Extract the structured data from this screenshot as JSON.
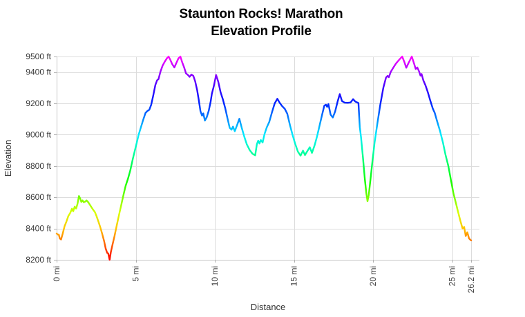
{
  "chart_data": {
    "type": "line",
    "title": "Staunton Rocks! Marathon",
    "subtitle": "Elevation Profile",
    "xlabel": "Distance",
    "ylabel": "Elevation",
    "xlim": [
      0,
      26.2
    ],
    "ylim": [
      8200,
      9500
    ],
    "grid": true,
    "x_ticks": {
      "values": [
        0,
        5,
        10,
        15,
        20,
        25,
        26.2
      ],
      "labels": [
        "0 mi",
        "5 mi",
        "10 mi",
        "15 mi",
        "20 mi",
        "25 mi",
        "26.2 mi"
      ]
    },
    "y_ticks": {
      "values": [
        8200,
        8400,
        8600,
        8800,
        9000,
        9200,
        9400,
        9500
      ],
      "labels": [
        "8200 ft",
        "8400 ft",
        "8600 ft",
        "8800 ft",
        "9000 ft",
        "9200 ft",
        "9400 ft",
        "9500 ft"
      ]
    },
    "line_style": {
      "width": 2.4,
      "colored_by": "elevation"
    },
    "color_scale": [
      {
        "ft": 8200,
        "color": "#ff0000"
      },
      {
        "ft": 8300,
        "color": "#ff6200"
      },
      {
        "ft": 8400,
        "color": "#ffc400"
      },
      {
        "ft": 8500,
        "color": "#d9ff00"
      },
      {
        "ft": 8600,
        "color": "#75ff00"
      },
      {
        "ft": 8700,
        "color": "#14ff00"
      },
      {
        "ft": 8800,
        "color": "#00ff4f"
      },
      {
        "ft": 8900,
        "color": "#00ffb0"
      },
      {
        "ft": 9000,
        "color": "#00ebff"
      },
      {
        "ft": 9100,
        "color": "#0087ff"
      },
      {
        "ft": 9200,
        "color": "#0023ff"
      },
      {
        "ft": 9300,
        "color": "#3c00ff"
      },
      {
        "ft": 9400,
        "color": "#9e00ff"
      },
      {
        "ft": 9500,
        "color": "#ff00ff"
      }
    ],
    "points": [
      [
        0.0,
        8368
      ],
      [
        0.07,
        8362
      ],
      [
        0.14,
        8360
      ],
      [
        0.2,
        8336
      ],
      [
        0.28,
        8330
      ],
      [
        0.38,
        8366
      ],
      [
        0.5,
        8415
      ],
      [
        0.62,
        8445
      ],
      [
        0.74,
        8480
      ],
      [
        0.86,
        8500
      ],
      [
        0.97,
        8527
      ],
      [
        1.05,
        8510
      ],
      [
        1.14,
        8540
      ],
      [
        1.23,
        8528
      ],
      [
        1.32,
        8558
      ],
      [
        1.41,
        8608
      ],
      [
        1.49,
        8592
      ],
      [
        1.56,
        8570
      ],
      [
        1.64,
        8580
      ],
      [
        1.71,
        8568
      ],
      [
        1.8,
        8572
      ],
      [
        1.89,
        8580
      ],
      [
        2.0,
        8568
      ],
      [
        2.1,
        8552
      ],
      [
        2.21,
        8535
      ],
      [
        2.31,
        8520
      ],
      [
        2.42,
        8505
      ],
      [
        2.52,
        8480
      ],
      [
        2.64,
        8444
      ],
      [
        2.76,
        8408
      ],
      [
        2.88,
        8365
      ],
      [
        3.0,
        8320
      ],
      [
        3.1,
        8272
      ],
      [
        3.19,
        8245
      ],
      [
        3.26,
        8240
      ],
      [
        3.35,
        8200
      ],
      [
        3.43,
        8250
      ],
      [
        3.53,
        8295
      ],
      [
        3.66,
        8352
      ],
      [
        3.8,
        8420
      ],
      [
        3.94,
        8485
      ],
      [
        4.08,
        8548
      ],
      [
        4.22,
        8612
      ],
      [
        4.36,
        8672
      ],
      [
        4.5,
        8716
      ],
      [
        4.65,
        8770
      ],
      [
        4.82,
        8848
      ],
      [
        5.0,
        8922
      ],
      [
        5.18,
        8998
      ],
      [
        5.34,
        9052
      ],
      [
        5.48,
        9098
      ],
      [
        5.62,
        9140
      ],
      [
        5.74,
        9152
      ],
      [
        5.86,
        9160
      ],
      [
        5.98,
        9192
      ],
      [
        6.1,
        9248
      ],
      [
        6.24,
        9318
      ],
      [
        6.35,
        9348
      ],
      [
        6.44,
        9356
      ],
      [
        6.56,
        9402
      ],
      [
        6.7,
        9442
      ],
      [
        6.84,
        9468
      ],
      [
        6.98,
        9490
      ],
      [
        7.08,
        9500
      ],
      [
        7.18,
        9480
      ],
      [
        7.3,
        9452
      ],
      [
        7.44,
        9430
      ],
      [
        7.57,
        9460
      ],
      [
        7.7,
        9488
      ],
      [
        7.82,
        9500
      ],
      [
        7.93,
        9465
      ],
      [
        8.05,
        9432
      ],
      [
        8.18,
        9392
      ],
      [
        8.3,
        9382
      ],
      [
        8.4,
        9370
      ],
      [
        8.52,
        9385
      ],
      [
        8.64,
        9376
      ],
      [
        8.76,
        9340
      ],
      [
        8.88,
        9285
      ],
      [
        8.99,
        9218
      ],
      [
        9.09,
        9150
      ],
      [
        9.19,
        9122
      ],
      [
        9.27,
        9136
      ],
      [
        9.37,
        9090
      ],
      [
        9.49,
        9112
      ],
      [
        9.61,
        9152
      ],
      [
        9.73,
        9208
      ],
      [
        9.81,
        9262
      ],
      [
        9.94,
        9312
      ],
      [
        10.08,
        9382
      ],
      [
        10.22,
        9338
      ],
      [
        10.36,
        9272
      ],
      [
        10.5,
        9228
      ],
      [
        10.65,
        9172
      ],
      [
        10.8,
        9105
      ],
      [
        10.94,
        9044
      ],
      [
        11.05,
        9032
      ],
      [
        11.15,
        9052
      ],
      [
        11.26,
        9022
      ],
      [
        11.4,
        9060
      ],
      [
        11.55,
        9102
      ],
      [
        11.7,
        9045
      ],
      [
        11.86,
        8988
      ],
      [
        12.02,
        8938
      ],
      [
        12.2,
        8902
      ],
      [
        12.38,
        8878
      ],
      [
        12.55,
        8868
      ],
      [
        12.66,
        8940
      ],
      [
        12.74,
        8962
      ],
      [
        12.82,
        8944
      ],
      [
        12.91,
        8966
      ],
      [
        13.02,
        8950
      ],
      [
        13.14,
        9004
      ],
      [
        13.28,
        9046
      ],
      [
        13.44,
        9082
      ],
      [
        13.6,
        9140
      ],
      [
        13.78,
        9200
      ],
      [
        13.95,
        9230
      ],
      [
        14.1,
        9204
      ],
      [
        14.26,
        9182
      ],
      [
        14.42,
        9166
      ],
      [
        14.58,
        9134
      ],
      [
        14.75,
        9060
      ],
      [
        14.92,
        8996
      ],
      [
        15.08,
        8942
      ],
      [
        15.25,
        8892
      ],
      [
        15.42,
        8866
      ],
      [
        15.57,
        8898
      ],
      [
        15.7,
        8870
      ],
      [
        15.85,
        8896
      ],
      [
        16.0,
        8920
      ],
      [
        16.14,
        8884
      ],
      [
        16.3,
        8930
      ],
      [
        16.46,
        8988
      ],
      [
        16.62,
        9058
      ],
      [
        16.78,
        9128
      ],
      [
        16.92,
        9186
      ],
      [
        17.02,
        9192
      ],
      [
        17.1,
        9178
      ],
      [
        17.18,
        9196
      ],
      [
        17.32,
        9128
      ],
      [
        17.46,
        9110
      ],
      [
        17.6,
        9148
      ],
      [
        17.76,
        9212
      ],
      [
        17.9,
        9260
      ],
      [
        18.04,
        9215
      ],
      [
        18.2,
        9205
      ],
      [
        18.4,
        9204
      ],
      [
        18.58,
        9206
      ],
      [
        18.74,
        9227
      ],
      [
        18.88,
        9212
      ],
      [
        19.0,
        9206
      ],
      [
        19.08,
        9202
      ],
      [
        19.16,
        9050
      ],
      [
        19.24,
        8985
      ],
      [
        19.36,
        8855
      ],
      [
        19.48,
        8718
      ],
      [
        19.58,
        8622
      ],
      [
        19.65,
        8574
      ],
      [
        19.73,
        8614
      ],
      [
        19.83,
        8705
      ],
      [
        19.96,
        8828
      ],
      [
        20.1,
        8952
      ],
      [
        20.28,
        9075
      ],
      [
        20.46,
        9192
      ],
      [
        20.65,
        9300
      ],
      [
        20.82,
        9365
      ],
      [
        20.92,
        9376
      ],
      [
        21.0,
        9368
      ],
      [
        21.12,
        9402
      ],
      [
        21.28,
        9428
      ],
      [
        21.45,
        9455
      ],
      [
        21.64,
        9478
      ],
      [
        21.84,
        9500
      ],
      [
        21.97,
        9468
      ],
      [
        22.1,
        9428
      ],
      [
        22.26,
        9462
      ],
      [
        22.45,
        9500
      ],
      [
        22.6,
        9452
      ],
      [
        22.7,
        9420
      ],
      [
        22.8,
        9430
      ],
      [
        22.92,
        9402
      ],
      [
        23.0,
        9378
      ],
      [
        23.07,
        9388
      ],
      [
        23.18,
        9348
      ],
      [
        23.32,
        9315
      ],
      [
        23.46,
        9272
      ],
      [
        23.62,
        9218
      ],
      [
        23.78,
        9166
      ],
      [
        23.9,
        9140
      ],
      [
        24.04,
        9090
      ],
      [
        24.22,
        9028
      ],
      [
        24.42,
        8950
      ],
      [
        24.58,
        8872
      ],
      [
        24.76,
        8800
      ],
      [
        24.92,
        8712
      ],
      [
        25.08,
        8625
      ],
      [
        25.23,
        8566
      ],
      [
        25.38,
        8505
      ],
      [
        25.52,
        8450
      ],
      [
        25.66,
        8400
      ],
      [
        25.76,
        8410
      ],
      [
        25.86,
        8352
      ],
      [
        25.96,
        8376
      ],
      [
        26.07,
        8336
      ],
      [
        26.2,
        8324
      ]
    ],
    "colors": {
      "grid": "#dcdcdc",
      "axis": "#c4c4c4",
      "tick": "#b0b0b0",
      "tick_text": "#383838",
      "axis_title_text": "#303030",
      "title_text": "#000000",
      "background": "#ffffff"
    }
  }
}
